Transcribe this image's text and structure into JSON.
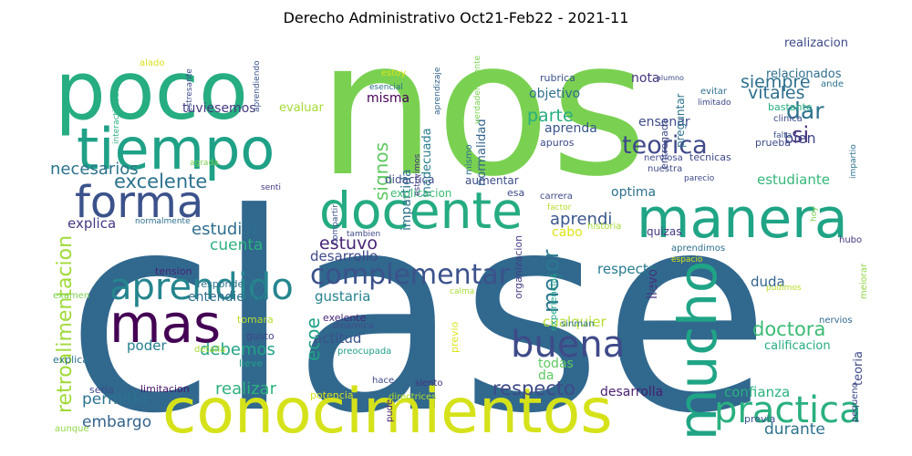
{
  "chart_data": {
    "type": "wordcloud",
    "title": "Derecho Administrativo Oct21-Feb22 - 2021-11",
    "words": [
      {
        "text": "clase",
        "color": "#31688e"
      },
      {
        "text": "nos",
        "color": "#7ad151"
      },
      {
        "text": "poco",
        "color": "#26ad81"
      },
      {
        "text": "conocimientos",
        "color": "#d5e21a"
      },
      {
        "text": "tiempo",
        "color": "#1fa187"
      },
      {
        "text": "manera",
        "color": "#20a486"
      },
      {
        "text": "docente",
        "color": "#25ab82"
      },
      {
        "text": "forma",
        "color": "#3b528b"
      },
      {
        "text": "mas",
        "color": "#440154"
      },
      {
        "text": "mucho",
        "color": "#20a486"
      },
      {
        "text": "aprendido",
        "color": "#25858e"
      },
      {
        "text": "buena",
        "color": "#3e4a89"
      },
      {
        "text": "practica",
        "color": "#2ab07f"
      },
      {
        "text": "complementar",
        "color": "#3b528b"
      },
      {
        "text": "teorica",
        "color": "#3e4989"
      },
      {
        "text": "retroalimentacion",
        "color": "#a0da39"
      },
      {
        "text": "excelente",
        "color": "#2c728e"
      },
      {
        "text": "necesarios",
        "color": "#2c738e"
      },
      {
        "text": "mejor",
        "color": "#2a788e"
      },
      {
        "text": "respecto",
        "color": "#3e4a89"
      },
      {
        "text": "dar",
        "color": "#2c728e"
      },
      {
        "text": "si",
        "color": "#46337e"
      },
      {
        "text": "vitales",
        "color": "#2e6f8e"
      },
      {
        "text": "siempre",
        "color": "#2d708e"
      },
      {
        "text": "signos",
        "color": "#5ec962"
      },
      {
        "text": "doctora",
        "color": "#3bbb75"
      },
      {
        "text": "ecoe",
        "color": "#1fa187"
      },
      {
        "text": "estuvo",
        "color": "#482475"
      },
      {
        "text": "aprendi",
        "color": "#39568c"
      },
      {
        "text": "parte",
        "color": "#26ad81"
      },
      {
        "text": "estudiar",
        "color": "#2e6e8e"
      },
      {
        "text": "cuenta",
        "color": "#2db27d"
      },
      {
        "text": "debemos",
        "color": "#20a386"
      },
      {
        "text": "permitio",
        "color": "#2c728e"
      },
      {
        "text": "embargo",
        "color": "#33638d"
      },
      {
        "text": "realizar",
        "color": "#2db27d"
      },
      {
        "text": "durante",
        "color": "#2c728e"
      },
      {
        "text": "confianza",
        "color": "#2ab07f"
      },
      {
        "text": "bien",
        "color": "#414487"
      },
      {
        "text": "estudiante",
        "color": "#35b779"
      },
      {
        "text": "explica",
        "color": "#443983"
      },
      {
        "text": "desarrollo",
        "color": "#3e4989"
      },
      {
        "text": "gustaria",
        "color": "#26828e"
      },
      {
        "text": "entendiendo",
        "color": "#2e6e8e"
      },
      {
        "text": "poder",
        "color": "#277f8e"
      },
      {
        "text": "actitud",
        "color": "#3b528b"
      },
      {
        "text": "cualquier",
        "color": "#b5de2b"
      },
      {
        "text": "respecta",
        "color": "#287c8e"
      },
      {
        "text": "duda",
        "color": "#33638d"
      },
      {
        "text": "todas",
        "color": "#5ec962"
      },
      {
        "text": "da",
        "color": "#5ec962"
      },
      {
        "text": "desarrolla",
        "color": "#481d6f"
      },
      {
        "text": "calificacion",
        "color": "#25ab82"
      },
      {
        "text": "teoria",
        "color": "#3e4989"
      },
      {
        "text": "optima",
        "color": "#2d708e"
      },
      {
        "text": "impartida",
        "color": "#2c728e"
      },
      {
        "text": "inadecuada",
        "color": "#287d8e"
      },
      {
        "text": "normalidad",
        "color": "#33638d"
      },
      {
        "text": "misma",
        "color": "#440154"
      },
      {
        "text": "tuviesemos",
        "color": "#443a83"
      },
      {
        "text": "nota",
        "color": "#46337e"
      },
      {
        "text": "objetivo",
        "color": "#2e6e8e"
      },
      {
        "text": "aprenda",
        "color": "#3a548c"
      },
      {
        "text": "ensenar",
        "color": "#3e4c8a"
      },
      {
        "text": "relacionados",
        "color": "#2e6e8e"
      },
      {
        "text": "realizacion",
        "color": "#3e4989"
      },
      {
        "text": "llevo",
        "color": "#46327e"
      },
      {
        "text": "pudimos",
        "color": "#b8de29"
      },
      {
        "text": "cabo",
        "color": "#dde318"
      },
      {
        "text": "quizas",
        "color": "#453781"
      },
      {
        "text": "evaluar",
        "color": "#a5db36"
      },
      {
        "text": "didactica",
        "color": "#3e4c8a"
      },
      {
        "text": "aumentar",
        "color": "#3e4c8a"
      },
      {
        "text": "explicacion",
        "color": "#3bbb75"
      },
      {
        "text": "esa",
        "color": "#3e4a89"
      },
      {
        "text": "carrera",
        "color": "#3e4989"
      },
      {
        "text": "factor",
        "color": "#b8de29"
      },
      {
        "text": "tension",
        "color": "#482475"
      },
      {
        "text": "respondernos",
        "color": "#2c728e"
      },
      {
        "text": "tomara",
        "color": "#b5de2b"
      },
      {
        "text": "gusto",
        "color": "#404688"
      },
      {
        "text": "exelente",
        "color": "#482878"
      },
      {
        "text": "dinamica",
        "color": "#3e4c8a"
      },
      {
        "text": "preocupada",
        "color": "#1f9e89"
      },
      {
        "text": "lleve",
        "color": "#1fa187"
      },
      {
        "text": "explicar",
        "color": "#2d708e"
      },
      {
        "text": "limitacion",
        "color": "#48186a"
      },
      {
        "text": "hace",
        "color": "#3e4989"
      },
      {
        "text": "siento",
        "color": "#46337e"
      },
      {
        "text": "potencia",
        "color": "#d8e219"
      },
      {
        "text": "directrices",
        "color": "#b5de2b"
      },
      {
        "text": "seria",
        "color": "#3e4989"
      },
      {
        "text": "aunque",
        "color": "#8fd744"
      },
      {
        "text": "pude",
        "color": "#482475"
      },
      {
        "text": "sinman",
        "color": "#2c728e"
      },
      {
        "text": "previo",
        "color": "#dde318"
      },
      {
        "text": "previa",
        "color": "#3b528b"
      },
      {
        "text": "organizacion",
        "color": "#433e85"
      },
      {
        "text": "experiencias",
        "color": "#20a486"
      },
      {
        "text": "calma",
        "color": "#a5db36"
      },
      {
        "text": "espacio",
        "color": "#d8e219"
      },
      {
        "text": "aprendimos",
        "color": "#2d708e"
      },
      {
        "text": "historia",
        "color": "#a5db36"
      },
      {
        "text": "mejorar",
        "color": "#8fd744"
      },
      {
        "text": "hubo",
        "color": "#453781"
      },
      {
        "text": "hoy",
        "color": "#7ad151"
      },
      {
        "text": "nervios",
        "color": "#31688e"
      },
      {
        "text": "pequeno",
        "color": "#3e4989"
      },
      {
        "text": "clave",
        "color": "#2d708e"
      },
      {
        "text": "examen",
        "color": "#7ad151"
      },
      {
        "text": "normalmente",
        "color": "#2e6e8e"
      },
      {
        "text": "detalla",
        "color": "#a5db36"
      },
      {
        "text": "compartir",
        "color": "#3b528b"
      },
      {
        "text": "tambien",
        "color": "#3e4a89"
      },
      {
        "text": "senti",
        "color": "#443983"
      },
      {
        "text": "agrada",
        "color": "#7ad151"
      },
      {
        "text": "interactividad",
        "color": "#2db27d"
      },
      {
        "text": "alado",
        "color": "#d8e219"
      },
      {
        "text": "estresante",
        "color": "#3e4989"
      },
      {
        "text": "aprendiendo",
        "color": "#3b528b"
      },
      {
        "text": "estoy",
        "color": "#d8e219"
      },
      {
        "text": "esencial",
        "color": "#2c728e"
      },
      {
        "text": "aprendizaje",
        "color": "#33638d"
      },
      {
        "text": "verdaderamente",
        "color": "#7ad151"
      },
      {
        "text": "estuvimos",
        "color": "#453781"
      },
      {
        "text": "mismo",
        "color": "#2c728e"
      },
      {
        "text": "rubrica",
        "color": "#3b528b"
      },
      {
        "text": "apuros",
        "color": "#3e4989"
      },
      {
        "text": "entregada",
        "color": "#3e4989"
      },
      {
        "text": "preguntar",
        "color": "#2c728e"
      },
      {
        "text": "limitado",
        "color": "#3e4989"
      },
      {
        "text": "evitar",
        "color": "#2d708e"
      },
      {
        "text": "alumno",
        "color": "#3e4989"
      },
      {
        "text": "ande",
        "color": "#2c728e"
      },
      {
        "text": "bastante",
        "color": "#26ad81"
      },
      {
        "text": "clinica",
        "color": "#3e4989"
      },
      {
        "text": "falta",
        "color": "#3b528b"
      },
      {
        "text": "prueba",
        "color": "#3e4a89"
      },
      {
        "text": "tecnicas",
        "color": "#3e4989"
      },
      {
        "text": "nerviosa",
        "color": "#3e4989"
      },
      {
        "text": "nuestra",
        "color": "#3e4989"
      },
      {
        "text": "parecio",
        "color": "#3e4989"
      },
      {
        "text": "impartio",
        "color": "#2c728e"
      }
    ]
  }
}
